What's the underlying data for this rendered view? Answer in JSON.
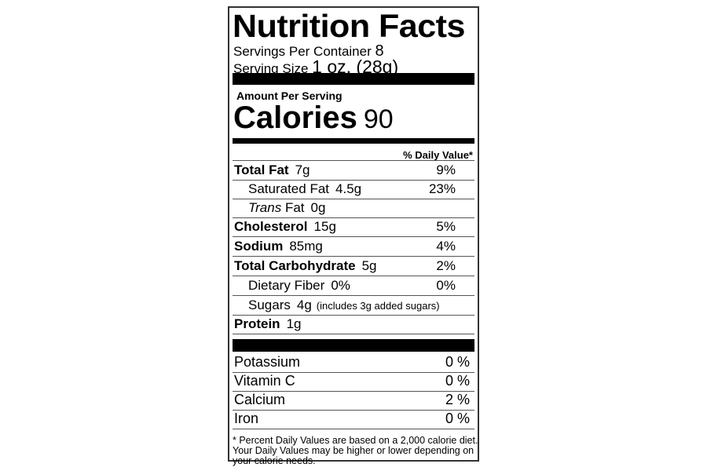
{
  "title": "Nutrition Facts",
  "servings_per_container": {
    "label": "Servings Per Container",
    "value": "8"
  },
  "serving_size": {
    "label": "Serving Size",
    "value": "1 oz. (28g)"
  },
  "amount_per_serving": "Amount Per Serving",
  "calories": {
    "label": "Calories",
    "value": "90"
  },
  "daily_value_header": "% Daily Value*",
  "nutrients": [
    {
      "name": "Total Fat",
      "amount": "7g",
      "dv": "9%",
      "bold": true
    },
    {
      "name": "Saturated Fat",
      "amount": "4.5g",
      "dv": "23%"
    },
    {
      "name": "Trans",
      "name_suffix": "Fat",
      "amount": "0g",
      "dv": ""
    },
    {
      "name": "Cholesterol",
      "amount": "15g",
      "dv": "5%",
      "bold": true
    },
    {
      "name": "Sodium",
      "amount": "85mg",
      "dv": "4%",
      "bold": true
    },
    {
      "name": "Total Carbohydrate",
      "amount": "5g",
      "dv": "2%",
      "bold": true
    },
    {
      "name": "Dietary Fiber",
      "amount": "0%",
      "dv": "0%"
    },
    {
      "name": "Sugars",
      "amount": "4g",
      "note": "(includes 3g added sugars)",
      "dv": ""
    },
    {
      "name": "Protein",
      "amount": "1g",
      "dv": "",
      "bold": true
    }
  ],
  "minerals": [
    {
      "name": "Potassium",
      "dv": "0 %"
    },
    {
      "name": "Vitamin C",
      "dv": "0 %"
    },
    {
      "name": "Calcium",
      "dv": "2 %"
    },
    {
      "name": "Iron",
      "dv": "0 %"
    }
  ],
  "footnote": "* Percent Daily Values are based on a 2,000 calorie diet. Your Daily Values may be higher or lower depending on your calorie needs."
}
